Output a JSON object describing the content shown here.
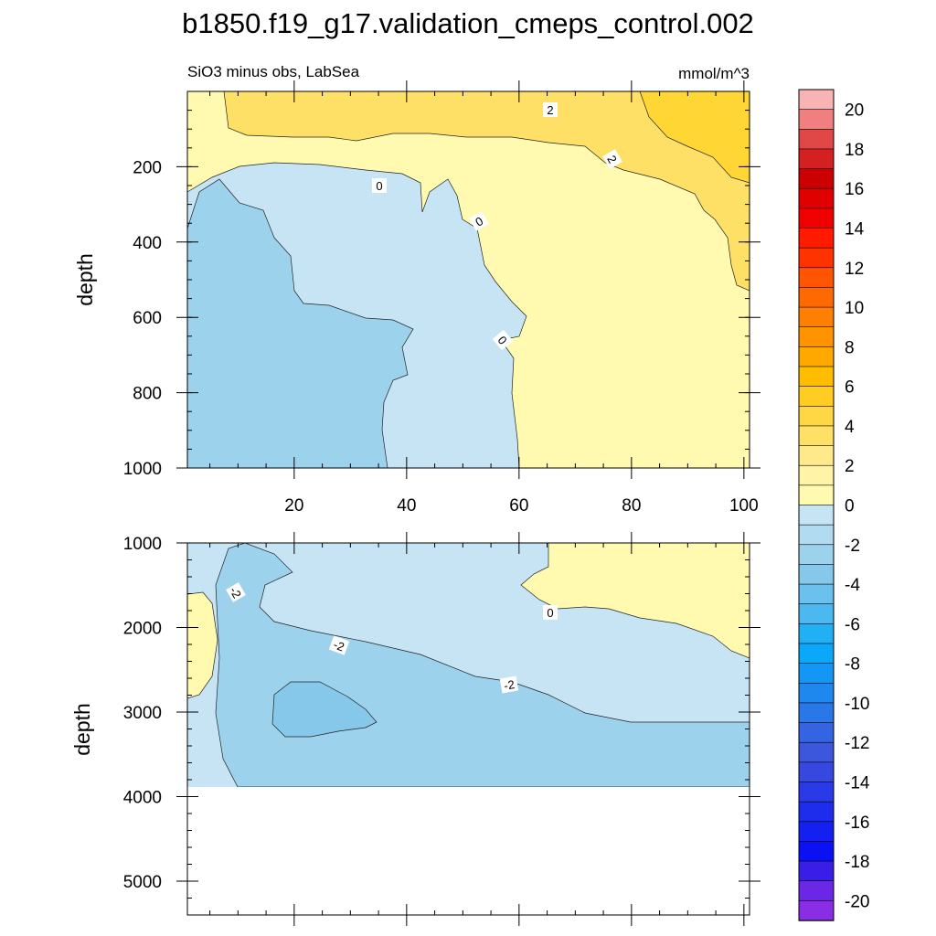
{
  "title": "b1850.f19_g17.validation_cmeps_control.002",
  "subtitle_left": "SiO3 minus obs, LabSea",
  "subtitle_right": "mmol/m^3",
  "chart_data": {
    "type": "heatmap",
    "x_ticks": [
      20,
      40,
      60,
      80,
      100
    ],
    "x_range": [
      1,
      101
    ],
    "colorbar": {
      "labels": [
        "20",
        "18",
        "16",
        "14",
        "12",
        "10",
        "8",
        "6",
        "4",
        "2",
        "0",
        "-2",
        "-4",
        "-6",
        "-8",
        "-10",
        "-12",
        "-14",
        "-16",
        "-18",
        "-20"
      ],
      "colors": [
        "#f8b4b4",
        "#f08080",
        "#e04848",
        "#d42020",
        "#cc0000",
        "#e00000",
        "#f00000",
        "#ff1a00",
        "#ff3300",
        "#ff5500",
        "#ff6a00",
        "#ff7f00",
        "#ff9400",
        "#ffa800",
        "#ffbd00",
        "#ffcc22",
        "#ffd644",
        "#ffe066",
        "#ffe98a",
        "#fff3a8",
        "#fffab0",
        "#c6e4f4",
        "#b0dbf0",
        "#9dd2ec",
        "#86c8ea",
        "#6cc0ee",
        "#4bb8f0",
        "#22b0f4",
        "#0aa8f8",
        "#1496f4",
        "#1e88ee",
        "#2a78e8",
        "#3464e2",
        "#3c56dc",
        "#3648e0",
        "#2a3ae6",
        "#1e2cec",
        "#1420f0",
        "#0a12f4",
        "#3a1ee8",
        "#6a28e6",
        "#8a2ee6"
      ]
    },
    "panels": [
      {
        "ylabel": "depth",
        "y_range": [
          0,
          1000
        ],
        "y_ticks": [
          200,
          400,
          600,
          800,
          1000
        ],
        "contour_labels": [
          "2",
          "2",
          "0",
          "0",
          "0"
        ],
        "regions": [
          {
            "level": "-2 to 0",
            "color": "#c6e4f4"
          },
          {
            "level": "-4 to -2",
            "color": "#9dd2ec"
          },
          {
            "level": "0 to 2",
            "color": "#fffab0"
          },
          {
            "level": "2 to 4",
            "color": "#ffe066"
          },
          {
            "level": "4 to 6",
            "color": "#ffd633"
          }
        ]
      },
      {
        "ylabel": "depth",
        "y_range": [
          1000,
          5400
        ],
        "y_ticks": [
          1000,
          2000,
          3000,
          4000,
          5000
        ],
        "contour_labels": [
          "-2",
          "-2",
          "-2",
          "0"
        ],
        "regions": [
          {
            "level": "-2 to 0",
            "color": "#c6e4f4"
          },
          {
            "level": "-4 to -2",
            "color": "#9dd2ec"
          },
          {
            "level": "-6 to -4",
            "color": "#86c8ea"
          },
          {
            "level": "0 to 2",
            "color": "#fffab0"
          }
        ]
      }
    ]
  }
}
